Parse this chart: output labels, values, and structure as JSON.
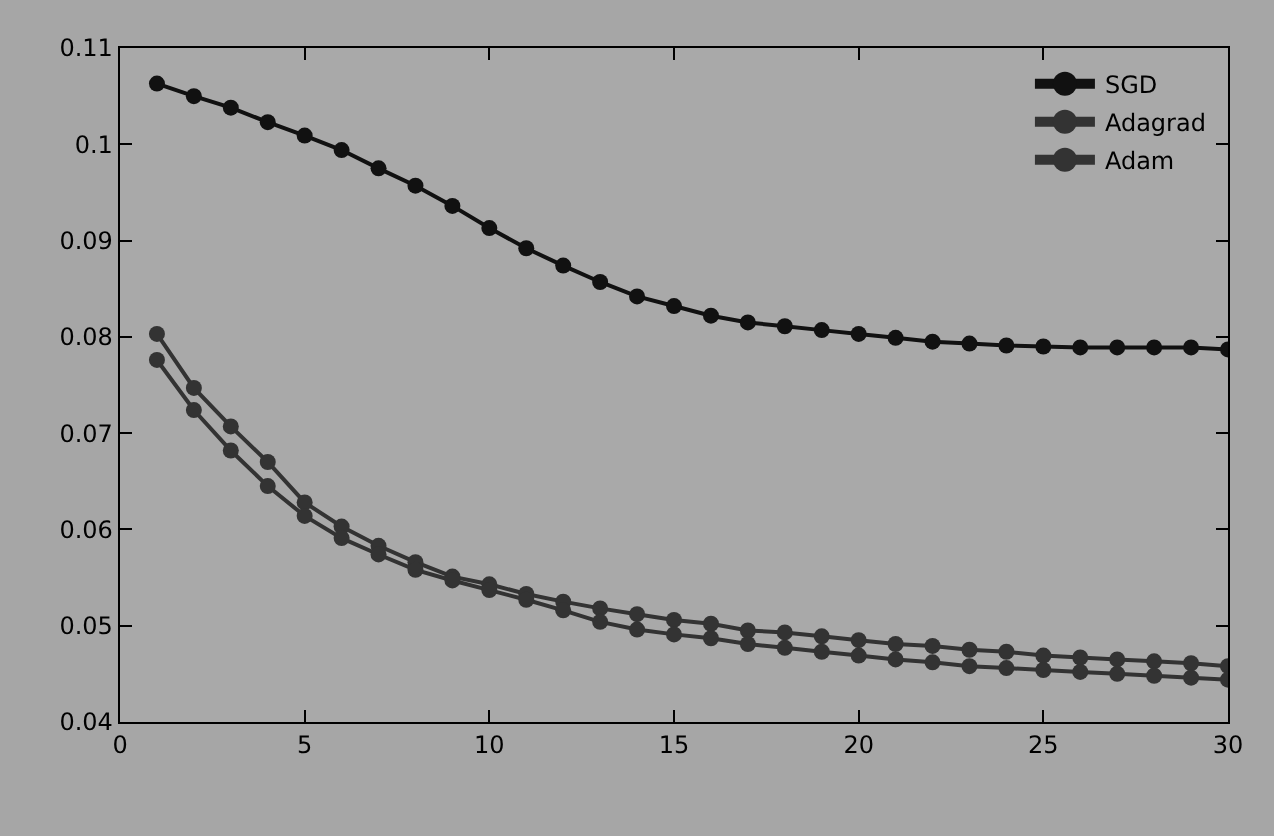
{
  "chart_data": {
    "type": "line",
    "x": [
      1,
      2,
      3,
      4,
      5,
      6,
      7,
      8,
      9,
      10,
      11,
      12,
      13,
      14,
      15,
      16,
      17,
      18,
      19,
      20,
      21,
      22,
      23,
      24,
      25,
      26,
      27,
      28,
      29,
      30
    ],
    "series": [
      {
        "name": "SGD",
        "color": "#111111",
        "values": [
          0.1063,
          0.105,
          0.1038,
          0.1023,
          0.1009,
          0.0994,
          0.0975,
          0.0957,
          0.0936,
          0.0913,
          0.0892,
          0.0874,
          0.0857,
          0.0842,
          0.0832,
          0.0822,
          0.0815,
          0.0811,
          0.0807,
          0.0803,
          0.0799,
          0.0795,
          0.0793,
          0.0791,
          0.079,
          0.0789,
          0.0789,
          0.0789,
          0.0789,
          0.0787
        ]
      },
      {
        "name": "Adagrad",
        "color": "#333333",
        "values": [
          0.0803,
          0.0747,
          0.0707,
          0.067,
          0.0628,
          0.0603,
          0.0583,
          0.0566,
          0.0551,
          0.0543,
          0.0533,
          0.0525,
          0.0518,
          0.0512,
          0.0506,
          0.0502,
          0.0495,
          0.0493,
          0.0489,
          0.0485,
          0.0481,
          0.0479,
          0.0475,
          0.0473,
          0.0469,
          0.0467,
          0.0465,
          0.0463,
          0.0461,
          0.0458
        ]
      },
      {
        "name": "Adam",
        "color": "#333333",
        "values": [
          0.0776,
          0.0724,
          0.0682,
          0.0645,
          0.0614,
          0.0591,
          0.0574,
          0.0558,
          0.0547,
          0.0537,
          0.0527,
          0.0516,
          0.0504,
          0.0496,
          0.0491,
          0.0487,
          0.0481,
          0.0477,
          0.0473,
          0.0469,
          0.0465,
          0.0462,
          0.0458,
          0.0456,
          0.0454,
          0.0452,
          0.045,
          0.0448,
          0.0446,
          0.0444
        ]
      }
    ],
    "xlim": [
      0,
      30
    ],
    "xticks": [
      0,
      5,
      10,
      15,
      20,
      25,
      30
    ],
    "ylim": [
      0.04,
      0.11
    ],
    "yticks": [
      0.04,
      0.05,
      0.06,
      0.07,
      0.08,
      0.09,
      {
        "value": 0.1,
        "label": "0.1"
      },
      0.11
    ],
    "grid": false,
    "legend": "top right",
    "marker": "circle",
    "line_style": "solid"
  }
}
